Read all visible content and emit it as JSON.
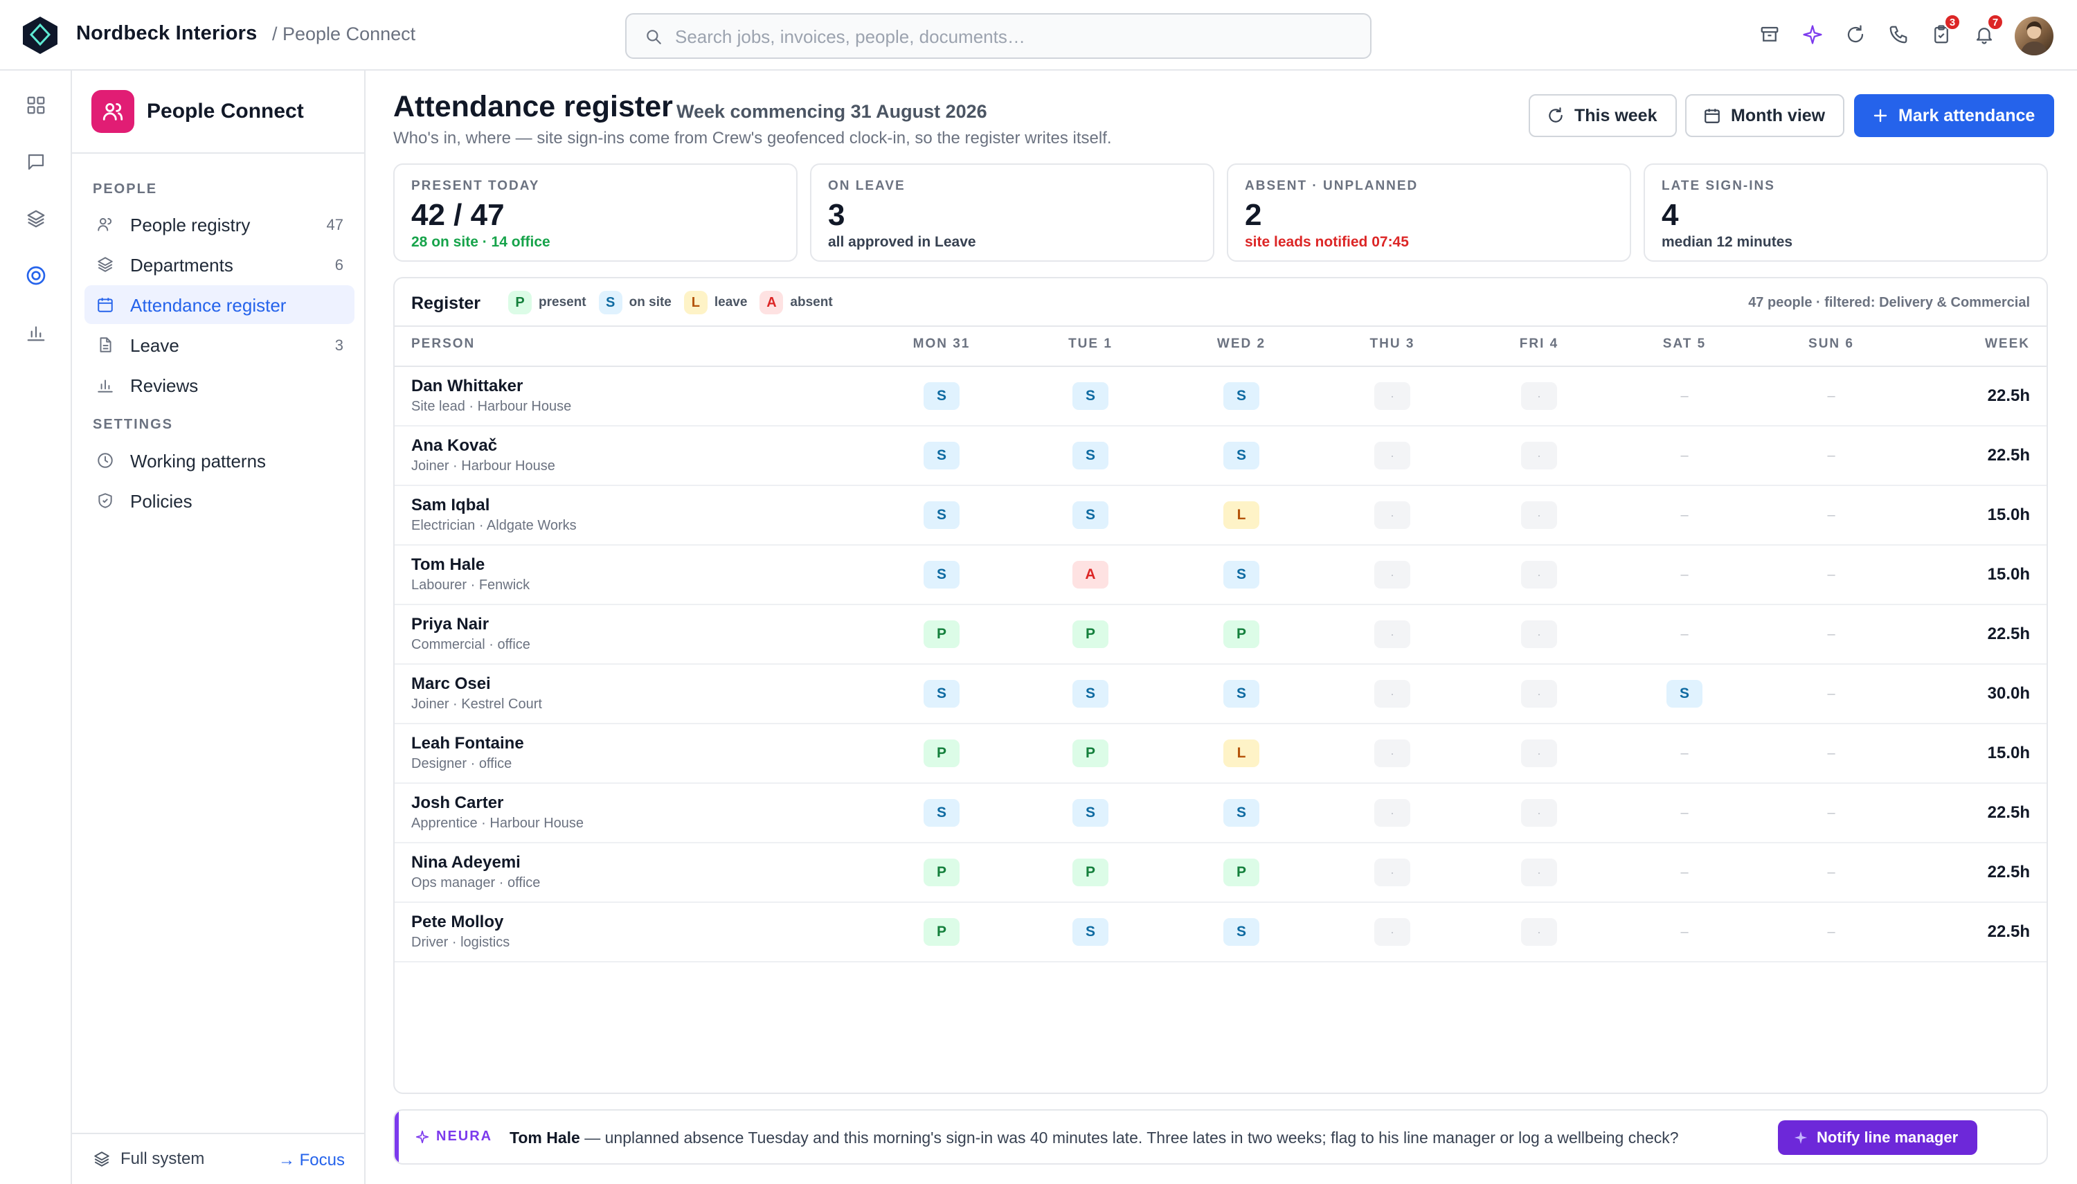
{
  "app": {
    "company": "Nordbeck Interiors",
    "breadcrumb": "/ People Connect",
    "search_placeholder": "Search jobs, invoices, people, documents…",
    "badges": {
      "tasks": "3",
      "notifications": "7"
    }
  },
  "module": {
    "title": "People Connect"
  },
  "sidebar": {
    "section_people": "PEOPLE",
    "section_settings": "SETTINGS",
    "items": [
      {
        "label": "People registry",
        "count": "47",
        "icon": "users-icon"
      },
      {
        "label": "Departments",
        "count": "6",
        "icon": "layers-icon"
      },
      {
        "label": "Attendance register",
        "count": "",
        "icon": "calendar-icon",
        "active": true
      },
      {
        "label": "Leave",
        "count": "3",
        "icon": "document-icon"
      },
      {
        "label": "Reviews",
        "count": "",
        "icon": "bar-chart-icon"
      }
    ],
    "settings_items": [
      {
        "label": "Working patterns",
        "icon": "clock-icon"
      },
      {
        "label": "Policies",
        "icon": "shield-icon"
      }
    ],
    "footer": {
      "full_system": "Full system",
      "focus": "→ Focus"
    }
  },
  "page": {
    "title": "Attendance register",
    "subtitle": "Week commencing 31 August 2026",
    "description": "Who's in, where — site sign-ins come from Crew's geofenced clock-in, so the register writes itself.",
    "buttons": {
      "this_week": "This week",
      "month_view": "Month view",
      "mark_attendance": "Mark attendance"
    }
  },
  "stats": [
    {
      "label": "PRESENT TODAY",
      "value": "42 / 47",
      "note": "28 on site · 14 office",
      "note_color": "#16a34a"
    },
    {
      "label": "ON LEAVE",
      "value": "3",
      "note": "all approved in Leave",
      "note_color": "#374151"
    },
    {
      "label": "ABSENT · UNPLANNED",
      "value": "2",
      "note": "site leads notified 07:45",
      "note_color": "#dc2626"
    },
    {
      "label": "LATE SIGN-INS",
      "value": "4",
      "note": "median 12 minutes",
      "note_color": "#374151"
    }
  ],
  "register": {
    "title": "Register",
    "legend": [
      {
        "code": "P",
        "label": "present"
      },
      {
        "code": "S",
        "label": "on site"
      },
      {
        "code": "L",
        "label": "leave"
      },
      {
        "code": "A",
        "label": "absent"
      }
    ],
    "filter_text": "47 people · filtered: Delivery & Commercial",
    "columns": [
      "PERSON",
      "MON 31",
      "TUE 1",
      "WED 2",
      "THU 3",
      "FRI 4",
      "SAT 5",
      "SUN 6",
      "WEEK"
    ],
    "rows": [
      {
        "name": "Dan Whittaker",
        "role": "Site lead · Harbour House",
        "days": [
          "S",
          "S",
          "S",
          "·",
          "·",
          "–",
          "–"
        ],
        "week": "22.5h"
      },
      {
        "name": "Ana Kovač",
        "role": "Joiner · Harbour House",
        "days": [
          "S",
          "S",
          "S",
          "·",
          "·",
          "–",
          "–"
        ],
        "week": "22.5h"
      },
      {
        "name": "Sam Iqbal",
        "role": "Electrician · Aldgate Works",
        "days": [
          "S",
          "S",
          "L",
          "·",
          "·",
          "–",
          "–"
        ],
        "week": "15.0h"
      },
      {
        "name": "Tom Hale",
        "role": "Labourer · Fenwick",
        "days": [
          "S",
          "A",
          "S",
          "·",
          "·",
          "–",
          "–"
        ],
        "week": "15.0h"
      },
      {
        "name": "Priya Nair",
        "role": "Commercial · office",
        "days": [
          "P",
          "P",
          "P",
          "·",
          "·",
          "–",
          "–"
        ],
        "week": "22.5h"
      },
      {
        "name": "Marc Osei",
        "role": "Joiner · Kestrel Court",
        "days": [
          "S",
          "S",
          "S",
          "·",
          "·",
          "S",
          "–"
        ],
        "week": "30.0h"
      },
      {
        "name": "Leah Fontaine",
        "role": "Designer · office",
        "days": [
          "P",
          "P",
          "L",
          "·",
          "·",
          "–",
          "–"
        ],
        "week": "15.0h"
      },
      {
        "name": "Josh Carter",
        "role": "Apprentice · Harbour House",
        "days": [
          "S",
          "S",
          "S",
          "·",
          "·",
          "–",
          "–"
        ],
        "week": "22.5h"
      },
      {
        "name": "Nina Adeyemi",
        "role": "Ops manager · office",
        "days": [
          "P",
          "P",
          "P",
          "·",
          "·",
          "–",
          "–"
        ],
        "week": "22.5h"
      },
      {
        "name": "Pete Molloy",
        "role": "Driver · logistics",
        "days": [
          "P",
          "S",
          "S",
          "·",
          "·",
          "–",
          "–"
        ],
        "week": "22.5h"
      }
    ]
  },
  "neura": {
    "tag": "NEURA",
    "name": "Tom Hale",
    "message": " — unplanned absence Tuesday and this morning's sign-in was 40 minutes late. Three lates in two weeks; flag to his line manager or log a wellbeing check?",
    "button": "Notify line manager"
  },
  "colors": {
    "primary": "#2563eb",
    "brand_pink": "#e11d74",
    "neura_purple": "#6d28d9",
    "present": "#15803d",
    "on_site": "#0e6aa1",
    "leave": "#b45309",
    "absent": "#dc2626"
  }
}
